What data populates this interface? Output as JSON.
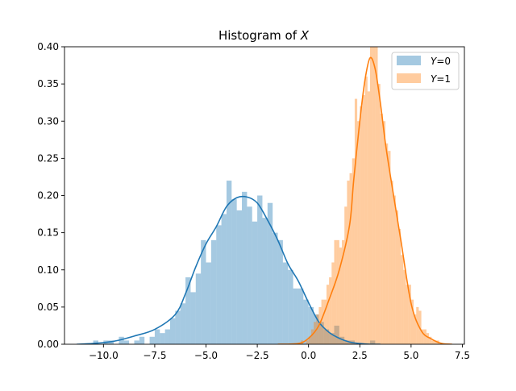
{
  "chart_data": {
    "type": "histogram",
    "title": "Histogram of X",
    "title_parts": {
      "prefix": "Histogram of ",
      "variable": "X"
    },
    "xlabel": "",
    "ylabel": "",
    "xlim": [
      -11.9,
      7.6
    ],
    "ylim": [
      0,
      0.4
    ],
    "grid": false,
    "legend_position": "top-right",
    "x_ticks": [
      -10.0,
      -7.5,
      -5.0,
      -2.5,
      0.0,
      2.5,
      5.0,
      7.5
    ],
    "x_tick_labels": [
      "−10.0",
      "−7.5",
      "−5.0",
      "−2.5",
      "0.0",
      "2.5",
      "5.0",
      "7.5"
    ],
    "y_ticks": [
      0.0,
      0.05,
      0.1,
      0.15,
      0.2,
      0.25,
      0.3,
      0.35,
      0.4
    ],
    "y_tick_labels": [
      "0.00",
      "0.05",
      "0.10",
      "0.15",
      "0.20",
      "0.25",
      "0.30",
      "0.35",
      "0.40"
    ],
    "series": [
      {
        "name": "Y=0",
        "label_var": "Y",
        "label_val": "=0",
        "color": "#1f77b4",
        "bar_alpha": 0.4,
        "bin_width": 0.25,
        "bins_start": [
          -10.5,
          -10.25,
          -10.0,
          -9.75,
          -9.5,
          -9.25,
          -9.0,
          -8.75,
          -8.5,
          -8.25,
          -8.0,
          -7.75,
          -7.5,
          -7.25,
          -7.0,
          -6.75,
          -6.5,
          -6.25,
          -6.0,
          -5.75,
          -5.5,
          -5.25,
          -5.0,
          -4.75,
          -4.5,
          -4.25,
          -4.0,
          -3.75,
          -3.5,
          -3.25,
          -3.0,
          -2.75,
          -2.5,
          -2.25,
          -2.0,
          -1.75,
          -1.5,
          -1.25,
          -1.0,
          -0.75,
          -0.5,
          -0.25,
          0.0,
          0.25,
          0.5,
          0.75,
          1.0,
          1.25,
          1.5,
          1.75,
          2.0,
          2.25,
          2.5,
          2.75,
          3.0,
          3.25
        ],
        "heights": [
          0.005,
          0.0,
          0.005,
          0.005,
          0.0,
          0.01,
          0.005,
          0.0,
          0.005,
          0.01,
          0.0,
          0.01,
          0.02,
          0.015,
          0.02,
          0.035,
          0.045,
          0.055,
          0.09,
          0.07,
          0.095,
          0.14,
          0.11,
          0.14,
          0.16,
          0.175,
          0.22,
          0.195,
          0.18,
          0.205,
          0.185,
          0.165,
          0.2,
          0.17,
          0.19,
          0.15,
          0.14,
          0.11,
          0.1,
          0.075,
          0.075,
          0.06,
          0.05,
          0.04,
          0.03,
          0.02,
          0.015,
          0.025,
          0.01,
          0.005,
          0.005,
          0.0,
          0.0,
          0.0,
          0.005,
          0.0
        ],
        "kde_x": [
          -11.3,
          -10.5,
          -9.5,
          -8.5,
          -7.5,
          -6.5,
          -6.0,
          -5.5,
          -5.0,
          -4.5,
          -4.0,
          -3.5,
          -3.0,
          -2.5,
          -2.0,
          -1.5,
          -1.0,
          -0.5,
          0.0,
          0.5,
          1.0,
          1.5,
          2.0,
          2.5,
          3.0,
          3.5
        ],
        "kde_y": [
          0.0,
          0.001,
          0.004,
          0.011,
          0.02,
          0.04,
          0.068,
          0.104,
          0.135,
          0.158,
          0.185,
          0.197,
          0.198,
          0.19,
          0.167,
          0.14,
          0.108,
          0.085,
          0.056,
          0.03,
          0.016,
          0.008,
          0.003,
          0.001,
          0.0,
          0.0
        ]
      },
      {
        "name": "Y=1",
        "label_var": "Y",
        "label_val": "=1",
        "color": "#ff7f0e",
        "bar_alpha": 0.4,
        "bin_width": 0.125,
        "bins_start": [
          -0.5,
          -0.375,
          -0.25,
          -0.125,
          0.0,
          0.125,
          0.25,
          0.375,
          0.5,
          0.625,
          0.75,
          0.875,
          1.0,
          1.125,
          1.25,
          1.375,
          1.5,
          1.625,
          1.75,
          1.875,
          2.0,
          2.125,
          2.25,
          2.375,
          2.5,
          2.625,
          2.75,
          2.875,
          3.0,
          3.125,
          3.25,
          3.375,
          3.5,
          3.625,
          3.75,
          3.875,
          4.0,
          4.125,
          4.25,
          4.375,
          4.5,
          4.625,
          4.75,
          4.875,
          5.0,
          5.125,
          5.25,
          5.375,
          5.5,
          5.625,
          5.75,
          5.875,
          6.0,
          6.125,
          6.25
        ],
        "heights": [
          0.0,
          0.005,
          0.0,
          0.005,
          0.01,
          0.02,
          0.03,
          0.04,
          0.05,
          0.06,
          0.06,
          0.08,
          0.09,
          0.11,
          0.14,
          0.14,
          0.13,
          0.14,
          0.185,
          0.22,
          0.23,
          0.25,
          0.33,
          0.3,
          0.32,
          0.335,
          0.36,
          0.34,
          0.41,
          0.41,
          0.4,
          0.35,
          0.31,
          0.3,
          0.27,
          0.26,
          0.22,
          0.2,
          0.18,
          0.155,
          0.12,
          0.1,
          0.08,
          0.08,
          0.06,
          0.04,
          0.05,
          0.045,
          0.02,
          0.02,
          0.015,
          0.01,
          0.005,
          0.005,
          0.005
        ],
        "kde_x": [
          -1.5,
          -0.5,
          0.0,
          0.5,
          1.0,
          1.5,
          2.0,
          2.2,
          2.5,
          2.75,
          3.0,
          3.25,
          3.5,
          3.75,
          4.0,
          4.5,
          5.0,
          5.5,
          6.0,
          6.5,
          7.0
        ],
        "kde_y": [
          0.0,
          0.001,
          0.008,
          0.025,
          0.06,
          0.1,
          0.16,
          0.22,
          0.3,
          0.355,
          0.385,
          0.37,
          0.325,
          0.27,
          0.225,
          0.14,
          0.055,
          0.018,
          0.007,
          0.001,
          0.0
        ]
      }
    ]
  }
}
